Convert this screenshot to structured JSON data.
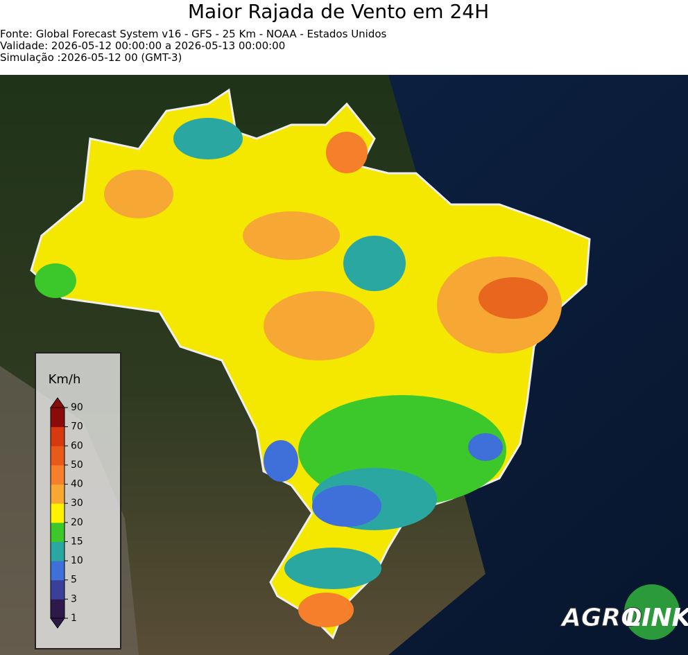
{
  "header": {
    "title": "Maior Rajada de Vento em 24H",
    "lines": [
      "Fonte: Global Forecast System v16 - GFS - 25 Km - NOAA - Estados Unidos",
      "Validade: 2026-05-12 00:00:00 a 2026-05-13 00:00:00",
      "Simulação :2026-05-12 00 (GMT-3)"
    ]
  },
  "legend": {
    "unit": "Km/h",
    "ticks": [
      1,
      3,
      5,
      10,
      15,
      20,
      30,
      40,
      50,
      60,
      70,
      90
    ],
    "colors": [
      "#2d1a4a",
      "#3a3f9a",
      "#3f6fd8",
      "#2aa7a0",
      "#3cc82a",
      "#fff200",
      "#f7a834",
      "#f57f2b",
      "#e85a1a",
      "#d83a10",
      "#8b0a0a"
    ]
  },
  "logo": {
    "left": "AGRO",
    "right": "LINK"
  }
}
